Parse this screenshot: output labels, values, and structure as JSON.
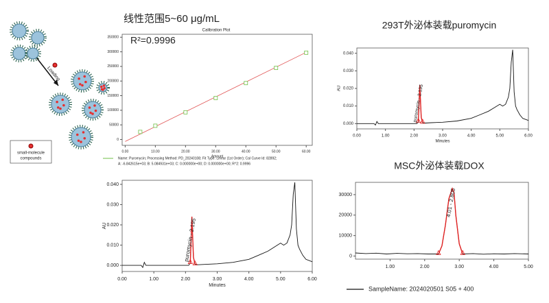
{
  "page": {
    "heading": "线性范围5~60 μg/mL",
    "r_squared": "R²=0.9996"
  },
  "illustration": {
    "arrow_label": "Loading",
    "legend_label_1": "small-molecule",
    "legend_label_2": "compounds"
  },
  "chart_data": [
    {
      "type": "scatter",
      "title": "Calibration Plot",
      "xlabel": "Amount",
      "xlim": [
        -1,
        62
      ],
      "ylim": [
        -20000,
        360000
      ],
      "xticks": [
        {
          "value": 0,
          "label": "0.00"
        },
        {
          "value": 10,
          "label": "10.00"
        },
        {
          "value": 20,
          "label": "20.00"
        },
        {
          "value": 30,
          "label": "30.00"
        },
        {
          "value": 40,
          "label": "40.00"
        },
        {
          "value": 50,
          "label": "50.00"
        },
        {
          "value": 60,
          "label": "60.00"
        }
      ],
      "yticks": [
        0,
        50000,
        100000,
        150000,
        200000,
        250000,
        300000,
        350000
      ],
      "series": [
        {
          "color": "#6fbf45",
          "x": [
            5,
            10,
            20,
            30,
            40,
            50,
            60
          ],
          "values": [
            26000,
            47000,
            93000,
            142000,
            193000,
            245000,
            297000
          ]
        }
      ],
      "fit_line": {
        "color": "#e05050",
        "x": [
          0,
          60
        ],
        "y": [
          -6843,
          298253
        ]
      },
      "legend_text": [
        "Name: Puromycin;  Processing Method: PD_20240108;  Fit Type: Linear (1st Order);  Cal Curve Id: 82892;",
        "A: -6.842615e+03;  B: 5.084931e+03;  C: 0.000000e+00;  D: 0.000000e+00;  R^2: 0.9996"
      ],
      "legend_color": "#6fbf45"
    },
    {
      "type": "line",
      "xlabel": "Minutes",
      "ylabel": "AU",
      "xlim": [
        0,
        6
      ],
      "ylim": [
        -0.003,
        0.042
      ],
      "xticks": [
        {
          "value": 0,
          "label": "0.00"
        },
        {
          "value": 1,
          "label": "1.00"
        },
        {
          "value": 2,
          "label": "2.00"
        },
        {
          "value": 3,
          "label": "3.00"
        },
        {
          "value": 4,
          "label": "4.00"
        },
        {
          "value": 5,
          "label": "5.00"
        },
        {
          "value": 6,
          "label": "6.00"
        }
      ],
      "yticks": [
        {
          "value": 0,
          "label": "0.000"
        },
        {
          "value": 0.01,
          "label": "0.010"
        },
        {
          "value": 0.02,
          "label": "0.020"
        },
        {
          "value": 0.03,
          "label": "0.030"
        },
        {
          "value": 0.04,
          "label": "0.040"
        }
      ],
      "series": [
        {
          "color": "#111111",
          "x": [
            0,
            0.3,
            0.6,
            0.65,
            0.7,
            0.75,
            0.9,
            1.2,
            1.5,
            1.8,
            2.1,
            2.15,
            2.2,
            2.25,
            2.3,
            2.4,
            2.6,
            3.0,
            3.5,
            4.0,
            4.3,
            4.6,
            4.8,
            5.0,
            5.1,
            5.2,
            5.3,
            5.35,
            5.4,
            5.45,
            5.5,
            5.55,
            5.6,
            5.7,
            5.8,
            6.0
          ],
          "values": [
            0,
            0,
            0,
            -0.001,
            0.0015,
            0,
            0,
            0,
            0,
            0,
            0,
            0.0012,
            0.024,
            0.004,
            0.0005,
            0.0003,
            0.0005,
            0.0008,
            0.0015,
            0.003,
            0.005,
            0.007,
            0.009,
            0.011,
            0.01,
            0.011,
            0.015,
            0.02,
            0.035,
            0.041,
            0.018,
            0.01,
            0.008,
            0.005,
            0.003,
            0.0018
          ]
        },
        {
          "color": "#e02020",
          "x": [
            2.15,
            2.2,
            2.25,
            2.3
          ],
          "values": [
            0.0012,
            0.024,
            0.004,
            0.0005
          ]
        }
      ],
      "annotations": [
        {
          "text": "puromycin - 2.195",
          "x": 2.195,
          "y": 0.0125
        }
      ]
    },
    {
      "type": "line",
      "title": "293T外泌体装载puromycin",
      "xlabel": "Minutes",
      "ylabel": "AU",
      "xlim": [
        0,
        6
      ],
      "ylim": [
        -0.003,
        0.043
      ],
      "xticks": [
        {
          "value": 0,
          "label": "0.00"
        },
        {
          "value": 1,
          "label": "1.00"
        },
        {
          "value": 2,
          "label": "2.00"
        },
        {
          "value": 3,
          "label": "3.00"
        },
        {
          "value": 4,
          "label": "4.00"
        },
        {
          "value": 5,
          "label": "5.00"
        },
        {
          "value": 6,
          "label": "6.00"
        }
      ],
      "yticks": [
        {
          "value": 0,
          "label": "0.000"
        },
        {
          "value": 0.01,
          "label": "0.010"
        },
        {
          "value": 0.02,
          "label": "0.020"
        },
        {
          "value": 0.03,
          "label": "0.030"
        },
        {
          "value": 0.04,
          "label": "0.040"
        }
      ],
      "series": [
        {
          "color": "#111111",
          "x": [
            0,
            0.3,
            0.6,
            0.65,
            0.7,
            0.75,
            0.9,
            1.2,
            1.5,
            1.8,
            2.1,
            2.15,
            2.2,
            2.25,
            2.3,
            2.4,
            2.6,
            3.0,
            3.5,
            4.0,
            4.3,
            4.6,
            4.8,
            5.0,
            5.1,
            5.2,
            5.3,
            5.35,
            5.4,
            5.45,
            5.5,
            5.55,
            5.6,
            5.7,
            5.8,
            6.0
          ],
          "values": [
            0,
            0,
            0,
            -0.0008,
            0.0012,
            0,
            0,
            0,
            0,
            0,
            0,
            0.001,
            0.022,
            0.0035,
            0.0005,
            0.0003,
            0.0005,
            0.0008,
            0.0015,
            0.003,
            0.005,
            0.007,
            0.009,
            0.011,
            0.01,
            0.011,
            0.015,
            0.02,
            0.035,
            0.042,
            0.018,
            0.01,
            0.008,
            0.005,
            0.003,
            0.0018
          ]
        },
        {
          "color": "#e02020",
          "x": [
            2.15,
            2.2,
            2.25,
            2.3
          ],
          "values": [
            0.001,
            0.022,
            0.0035,
            0.0005
          ]
        }
      ],
      "annotations": [
        {
          "text": "puromycin - 2.195",
          "x": 2.195,
          "y": 0.0115
        }
      ]
    },
    {
      "type": "line",
      "title": "MSC外泌体装载DOX",
      "xlim": [
        0,
        5
      ],
      "ylim": [
        -1500,
        36000
      ],
      "xticks": [
        {
          "value": 1,
          "label": "1.00"
        },
        {
          "value": 2,
          "label": "2.00"
        },
        {
          "value": 3,
          "label": "3.00"
        },
        {
          "value": 4,
          "label": "4.00"
        },
        {
          "value": 5,
          "label": "5.00"
        }
      ],
      "yticks": [
        0,
        10000,
        20000,
        30000
      ],
      "series": [
        {
          "name": "SampleName: 2024020501 S05 + 400",
          "color": "#111111",
          "x": [
            0,
            0.3,
            0.6,
            0.9,
            1.2,
            1.5,
            1.8,
            2.1,
            2.4,
            2.5,
            2.6,
            2.7,
            2.8,
            2.85,
            2.9,
            3.0,
            3.1,
            3.4,
            3.7,
            4.0,
            4.3,
            4.6,
            5.0
          ],
          "values": [
            1500,
            1200,
            1400,
            1000,
            1300,
            1100,
            1200,
            1000,
            1000,
            5000,
            15000,
            28000,
            33000,
            31000,
            20000,
            6000,
            1000,
            1200,
            900,
            1100,
            1000,
            1200,
            1000
          ]
        },
        {
          "color": "#e02020",
          "x": [
            2.4,
            2.5,
            2.6,
            2.7,
            2.8,
            2.85,
            2.9,
            3.0,
            3.1
          ],
          "values": [
            1000,
            5000,
            15000,
            28000,
            33000,
            31000,
            20000,
            6000,
            1000
          ]
        }
      ],
      "annotations": [
        {
          "text": "4.01 - 2.805",
          "x": 2.805,
          "y": 26000
        }
      ]
    }
  ]
}
